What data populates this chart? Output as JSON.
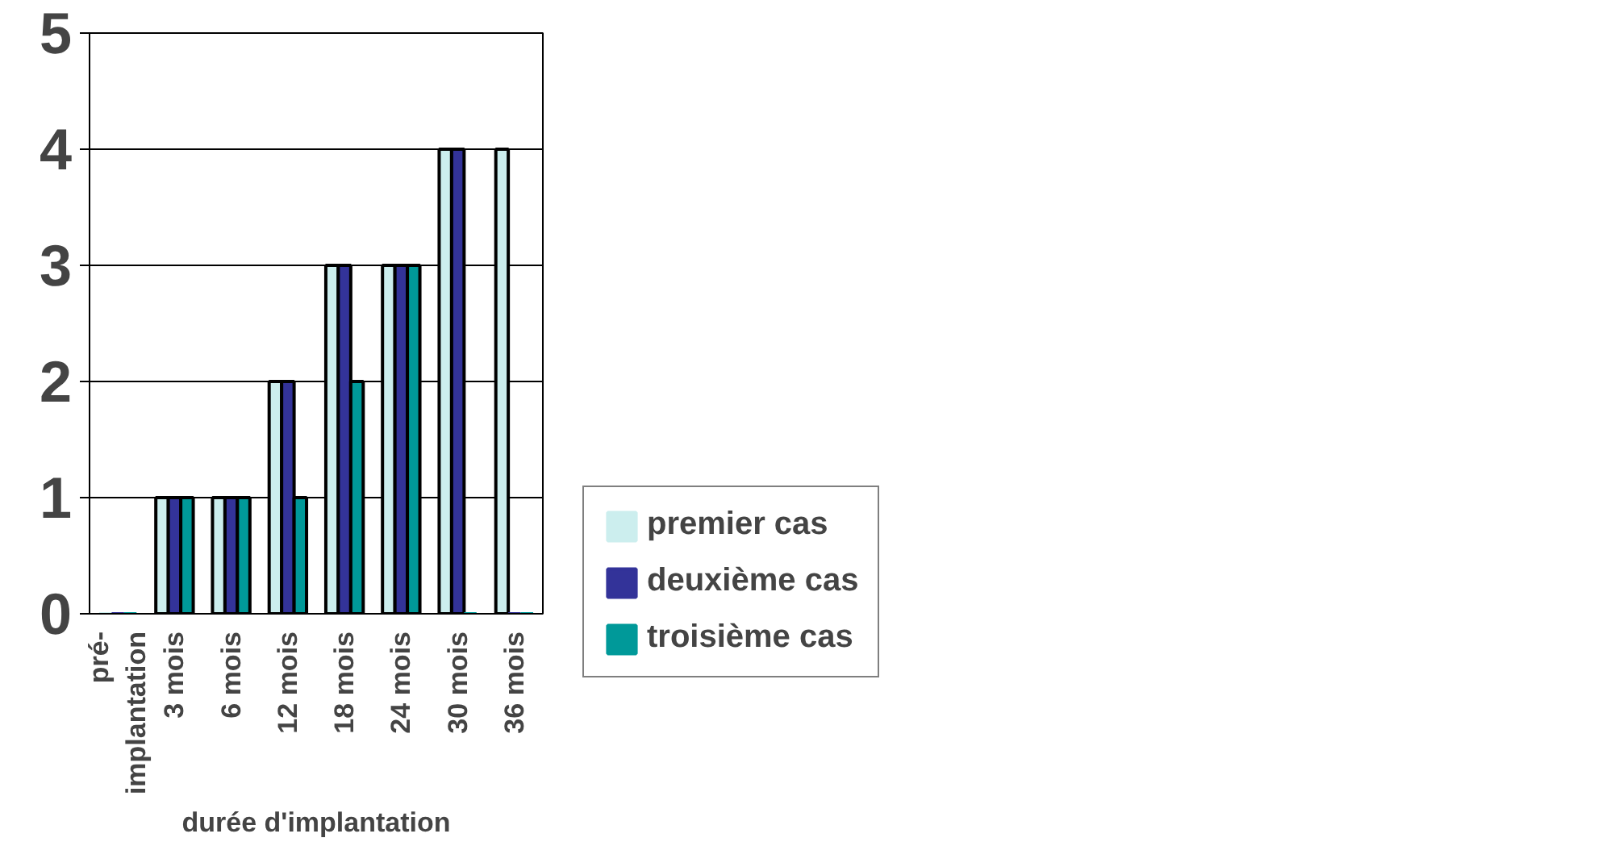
{
  "chart_data": {
    "type": "bar",
    "xlabel": "durée d'implantation",
    "categories": [
      "pré-\nimplantation",
      "3 mois",
      "6 mois",
      "12 mois",
      "18 mois",
      "24 mois",
      "30 mois",
      "36 mois"
    ],
    "series": [
      {
        "name": "premier cas",
        "color": "#cceeee",
        "values": [
          0,
          1,
          1,
          2,
          3,
          3,
          4,
          4
        ]
      },
      {
        "name": "deuxième cas",
        "color": "#333399",
        "values": [
          0,
          1,
          1,
          2,
          3,
          3,
          4,
          0
        ]
      },
      {
        "name": "troisième cas",
        "color": "#009999",
        "values": [
          0,
          1,
          1,
          1,
          2,
          3,
          0,
          0
        ]
      }
    ],
    "ylim": [
      0,
      5
    ],
    "yticks": [
      0,
      1,
      2,
      3,
      4,
      5
    ],
    "grid": "y",
    "legend": "right"
  }
}
